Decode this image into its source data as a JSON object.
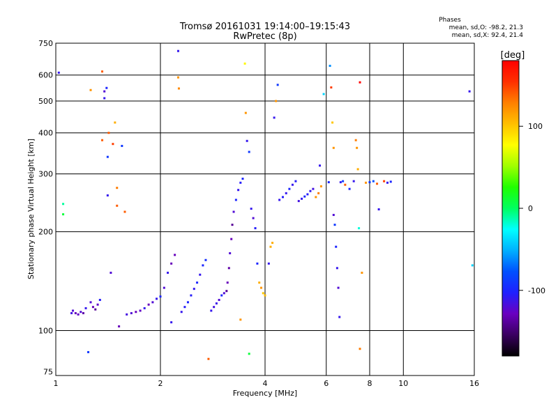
{
  "chart_data": {
    "type": "scatter",
    "title": "Tromsø 20161031 19:14:00–19:15:43",
    "subtitle": "RwPretec (8p)",
    "xlabel": "Frequency [MHz]",
    "ylabel": "Stationary phase Virtual Height [km]",
    "x_scale": "log2",
    "y_scale": "log",
    "xlim": [
      1,
      16
    ],
    "ylim": [
      73,
      750
    ],
    "x_ticks": [
      1,
      2,
      4,
      6,
      8,
      10,
      16
    ],
    "y_ticks": [
      75,
      100,
      200,
      300,
      400,
      500,
      600,
      750
    ],
    "x_tick_labels": [
      "1",
      "2",
      "4",
      "6",
      "8",
      "10",
      "16"
    ],
    "y_tick_labels": [
      "75",
      "100",
      "200",
      "300",
      "400",
      "500",
      "600",
      "750"
    ],
    "grid": true,
    "colorbar": {
      "label": "[deg]",
      "range": [
        -180,
        180
      ],
      "ticks": [
        100,
        0,
        -100
      ],
      "tick_labels": [
        "100",
        "0",
        "-100"
      ],
      "colors": [
        "#000000",
        "#3a0060",
        "#6a00c0",
        "#2020ff",
        "#0050ff",
        "#00b0ff",
        "#00ffff",
        "#00ff60",
        "#20ff00",
        "#a0ff00",
        "#ffff00",
        "#ffc000",
        "#ff8000",
        "#ff3000",
        "#ff0000"
      ]
    },
    "stats": {
      "header": "Phases",
      "o_line": "mean, sd,O: -98.2, 21.3",
      "x_line": "mean, sd,X: 92.4, 21.4"
    },
    "points": [
      [
        1.02,
        610,
        -110
      ],
      [
        1.05,
        243,
        -10
      ],
      [
        1.05,
        226,
        10
      ],
      [
        1.11,
        113,
        -115
      ],
      [
        1.12,
        115,
        -120
      ],
      [
        1.14,
        113,
        -130
      ],
      [
        1.16,
        112,
        -125
      ],
      [
        1.18,
        114,
        -120
      ],
      [
        1.2,
        113,
        -135
      ],
      [
        1.22,
        117,
        -110
      ],
      [
        1.24,
        86,
        -90
      ],
      [
        1.26,
        540,
        120
      ],
      [
        1.26,
        122,
        -120
      ],
      [
        1.28,
        118,
        -130
      ],
      [
        1.3,
        116,
        -140
      ],
      [
        1.32,
        120,
        -125
      ],
      [
        1.34,
        124,
        -105
      ],
      [
        1.36,
        615,
        140
      ],
      [
        1.36,
        380,
        140
      ],
      [
        1.38,
        510,
        -110
      ],
      [
        1.38,
        535,
        -120
      ],
      [
        1.4,
        548,
        -100
      ],
      [
        1.41,
        258,
        -110
      ],
      [
        1.41,
        338,
        -90
      ],
      [
        1.42,
        400,
        140
      ],
      [
        1.44,
        150,
        -120
      ],
      [
        1.46,
        370,
        150
      ],
      [
        1.48,
        430,
        110
      ],
      [
        1.5,
        272,
        130
      ],
      [
        1.5,
        240,
        140
      ],
      [
        1.52,
        103,
        -130
      ],
      [
        1.55,
        365,
        -90
      ],
      [
        1.58,
        230,
        140
      ],
      [
        1.6,
        112,
        -115
      ],
      [
        1.65,
        113,
        -120
      ],
      [
        1.7,
        114,
        -130
      ],
      [
        1.75,
        115,
        -125
      ],
      [
        1.8,
        117,
        -110
      ],
      [
        1.85,
        120,
        -130
      ],
      [
        1.9,
        122,
        -120
      ],
      [
        1.95,
        125,
        -110
      ],
      [
        2.0,
        127,
        -100
      ],
      [
        2.05,
        135,
        -120
      ],
      [
        2.1,
        150,
        -110
      ],
      [
        2.15,
        160,
        -130
      ],
      [
        2.2,
        170,
        -130
      ],
      [
        2.25,
        710,
        -110
      ],
      [
        2.25,
        590,
        120
      ],
      [
        2.26,
        546,
        125
      ],
      [
        2.3,
        114,
        -110
      ],
      [
        2.35,
        118,
        -105
      ],
      [
        2.4,
        122,
        -100
      ],
      [
        2.45,
        128,
        -105
      ],
      [
        2.5,
        134,
        -110
      ],
      [
        2.55,
        140,
        -100
      ],
      [
        2.6,
        148,
        -110
      ],
      [
        2.65,
        158,
        -100
      ],
      [
        2.7,
        164,
        -95
      ],
      [
        2.75,
        82,
        140
      ],
      [
        2.8,
        115,
        -110
      ],
      [
        2.85,
        118,
        -115
      ],
      [
        2.9,
        121,
        -112
      ],
      [
        2.95,
        124,
        -120
      ],
      [
        3.0,
        128,
        -100
      ],
      [
        3.05,
        130,
        -120
      ],
      [
        3.1,
        132,
        -140
      ],
      [
        3.12,
        140,
        -130
      ],
      [
        3.15,
        155,
        -135
      ],
      [
        3.17,
        172,
        -120
      ],
      [
        3.2,
        190,
        -130
      ],
      [
        3.22,
        210,
        -140
      ],
      [
        3.25,
        230,
        -120
      ],
      [
        3.3,
        250,
        -100
      ],
      [
        3.35,
        268,
        -110
      ],
      [
        3.4,
        282,
        -105
      ],
      [
        3.45,
        290,
        -100
      ],
      [
        3.5,
        650,
        80
      ],
      [
        3.52,
        460,
        120
      ],
      [
        3.55,
        378,
        -110
      ],
      [
        3.6,
        350,
        -90
      ],
      [
        3.65,
        235,
        -110
      ],
      [
        3.7,
        220,
        -120
      ],
      [
        3.75,
        205,
        -105
      ],
      [
        3.8,
        160,
        -100
      ],
      [
        3.85,
        140,
        110
      ],
      [
        3.9,
        135,
        120
      ],
      [
        3.95,
        130,
        100
      ],
      [
        4.0,
        128,
        105
      ],
      [
        4.1,
        160,
        -110
      ],
      [
        4.15,
        180,
        110
      ],
      [
        4.2,
        185,
        110
      ],
      [
        4.25,
        445,
        -110
      ],
      [
        4.3,
        500,
        120
      ],
      [
        4.35,
        560,
        -90
      ],
      [
        4.4,
        250,
        -110
      ],
      [
        4.5,
        255,
        -105
      ],
      [
        4.6,
        262,
        -110
      ],
      [
        4.7,
        270,
        -100
      ],
      [
        4.8,
        278,
        -110
      ],
      [
        4.9,
        285,
        -105
      ],
      [
        5.0,
        248,
        -115
      ],
      [
        5.1,
        252,
        -110
      ],
      [
        5.2,
        256,
        -100
      ],
      [
        5.3,
        260,
        -105
      ],
      [
        5.4,
        266,
        -110
      ],
      [
        5.5,
        270,
        -115
      ],
      [
        5.6,
        255,
        120
      ],
      [
        5.7,
        262,
        130
      ],
      [
        5.75,
        318,
        -110
      ],
      [
        5.8,
        275,
        120
      ],
      [
        5.9,
        525,
        -40
      ],
      [
        6.1,
        283,
        -100
      ],
      [
        6.15,
        640,
        -60
      ],
      [
        6.2,
        550,
        150
      ],
      [
        6.25,
        430,
        100
      ],
      [
        6.3,
        360,
        120
      ],
      [
        6.3,
        225,
        -120
      ],
      [
        6.35,
        210,
        -90
      ],
      [
        6.4,
        180,
        -100
      ],
      [
        6.45,
        155,
        -110
      ],
      [
        6.5,
        135,
        -120
      ],
      [
        6.55,
        110,
        -110
      ],
      [
        6.6,
        283,
        -110
      ],
      [
        6.7,
        285,
        -90
      ],
      [
        6.8,
        278,
        140
      ],
      [
        7.0,
        270,
        -100
      ],
      [
        7.2,
        285,
        -110
      ],
      [
        7.3,
        380,
        130
      ],
      [
        7.35,
        360,
        120
      ],
      [
        7.4,
        310,
        110
      ],
      [
        7.45,
        205,
        -20
      ],
      [
        7.5,
        570,
        180
      ],
      [
        7.5,
        88,
        130
      ],
      [
        7.6,
        150,
        120
      ],
      [
        7.8,
        282,
        120
      ],
      [
        8.0,
        283,
        -90
      ],
      [
        8.2,
        285,
        -80
      ],
      [
        8.4,
        280,
        140
      ],
      [
        8.5,
        234,
        -110
      ],
      [
        8.8,
        285,
        150
      ],
      [
        9.0,
        282,
        -110
      ],
      [
        9.2,
        284,
        -100
      ],
      [
        15.5,
        535,
        -110
      ],
      [
        15.8,
        158,
        -40
      ],
      [
        3.4,
        108,
        120
      ],
      [
        3.6,
        85,
        10
      ],
      [
        2.15,
        106,
        -110
      ]
    ]
  }
}
